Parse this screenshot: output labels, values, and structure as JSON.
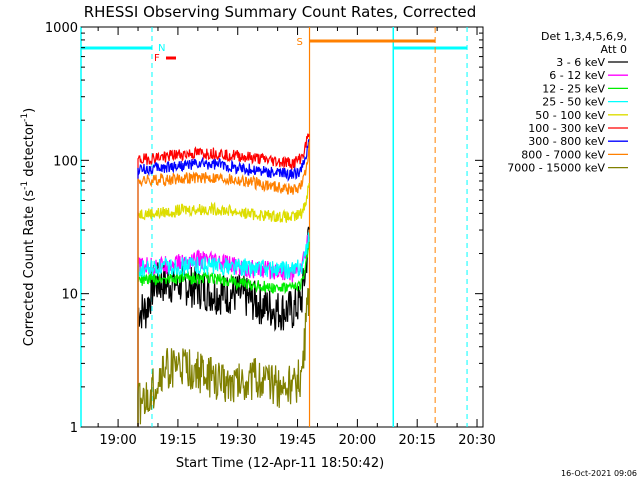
{
  "chart_data": {
    "type": "line",
    "title": "RHESSI Observing Summary Count Rates, Corrected",
    "xlabel": "Start Time (12-Apr-11 18:50:42)",
    "ylabel": "Corrected Count Rate (s⁻¹ detector⁻¹)",
    "ylabel_main": "Corrected Count Rate (s",
    "ylabel_mid": " detector",
    "ylabel_end": ")",
    "ylabel_exp": "-1",
    "y_scale": "log",
    "ylim": [
      1,
      1000
    ],
    "xlim": [
      "18:50:42",
      "20:31:30"
    ],
    "y_ticks": [
      {
        "value": 1,
        "label": "1"
      },
      {
        "value": 10,
        "label": "10"
      },
      {
        "value": 100,
        "label": "100"
      },
      {
        "value": 1000,
        "label": "1000"
      }
    ],
    "x_ticks": [
      {
        "time": "19:00",
        "label": "19:00"
      },
      {
        "time": "19:15",
        "label": "19:15"
      },
      {
        "time": "19:30",
        "label": "19:30"
      },
      {
        "time": "19:45",
        "label": "19:45"
      },
      {
        "time": "20:00",
        "label": "20:00"
      },
      {
        "time": "20:15",
        "label": "20:15"
      },
      {
        "time": "20:30",
        "label": "20:30"
      }
    ],
    "legend": {
      "position": "right",
      "header1": "Det 1,3,4,5,6,9,",
      "header2": "Att 0"
    },
    "data_start": "19:05:00",
    "data_end": "19:48:00",
    "series": [
      {
        "name": "3 - 6 keV",
        "color": "#000000",
        "x": [
          "19:05",
          "19:07",
          "19:09",
          "19:12",
          "19:15",
          "19:20",
          "19:25",
          "19:30",
          "19:35",
          "19:40",
          "19:44",
          "19:46",
          "19:47",
          "19:48"
        ],
        "y": [
          7.5,
          7.5,
          12,
          12,
          12,
          11,
          10,
          10,
          8.5,
          7.5,
          7.5,
          9,
          15,
          32
        ]
      },
      {
        "name": "6 - 12 keV",
        "color": "#ff00ff",
        "x": [
          "19:05",
          "19:10",
          "19:15",
          "19:20",
          "19:25",
          "19:30",
          "19:35",
          "19:40",
          "19:44",
          "19:46",
          "19:47",
          "19:48"
        ],
        "y": [
          16,
          16,
          17,
          18,
          17,
          16,
          15,
          15,
          14,
          16,
          20,
          32
        ]
      },
      {
        "name": "12 - 25 keV",
        "color": "#00ee00",
        "x": [
          "19:05",
          "19:10",
          "19:15",
          "19:20",
          "19:25",
          "19:30",
          "19:35",
          "19:40",
          "19:44",
          "19:46",
          "19:47",
          "19:48"
        ],
        "y": [
          12.5,
          13,
          13,
          13,
          13,
          12,
          11.5,
          11,
          11,
          12,
          15,
          28
        ]
      },
      {
        "name": "25 - 50 keV",
        "color": "#00ffff",
        "x": [
          "19:05",
          "19:10",
          "19:15",
          "19:20",
          "19:25",
          "19:30",
          "19:35",
          "19:40",
          "19:44",
          "19:46",
          "19:47",
          "19:48"
        ],
        "y": [
          15,
          15.5,
          16,
          16.5,
          16,
          16,
          15.5,
          15,
          15,
          16,
          19,
          30
        ]
      },
      {
        "name": "50 - 100 keV",
        "color": "#dddd00",
        "x": [
          "19:05",
          "19:10",
          "19:15",
          "19:20",
          "19:25",
          "19:30",
          "19:35",
          "19:40",
          "19:44",
          "19:46",
          "19:47",
          "19:48"
        ],
        "y": [
          40,
          40,
          42,
          43,
          43,
          41,
          39,
          38,
          37,
          40,
          48,
          70
        ]
      },
      {
        "name": "100 - 300 keV",
        "color": "#ff0000",
        "x": [
          "19:05",
          "19:10",
          "19:15",
          "19:20",
          "19:25",
          "19:30",
          "19:35",
          "19:40",
          "19:44",
          "19:46",
          "19:47",
          "19:48"
        ],
        "y": [
          100,
          105,
          110,
          113,
          113,
          108,
          103,
          98,
          95,
          105,
          125,
          180
        ]
      },
      {
        "name": "300 - 800 keV",
        "color": "#0000ff",
        "x": [
          "19:05",
          "19:10",
          "19:15",
          "19:20",
          "19:25",
          "19:30",
          "19:35",
          "19:40",
          "19:44",
          "19:46",
          "19:47",
          "19:48"
        ],
        "y": [
          85,
          87,
          91,
          93,
          93,
          88,
          84,
          80,
          78,
          85,
          100,
          150
        ]
      },
      {
        "name": "800 - 7000 keV",
        "color": "#ff8000",
        "x": [
          "19:05",
          "19:10",
          "19:15",
          "19:20",
          "19:25",
          "19:30",
          "19:35",
          "19:40",
          "19:44",
          "19:46",
          "19:47",
          "19:48"
        ],
        "y": [
          70,
          71,
          73,
          74,
          74,
          71,
          67,
          63,
          60,
          65,
          80,
          130
        ]
      },
      {
        "name": "7000 - 15000 keV",
        "color": "#808000",
        "x": [
          "19:05",
          "19:07",
          "19:09",
          "19:12",
          "19:15",
          "19:20",
          "19:25",
          "19:30",
          "19:35",
          "19:40",
          "19:44",
          "19:46",
          "19:47",
          "19:48"
        ],
        "y": [
          1.5,
          1.5,
          2,
          2.8,
          2.8,
          2.6,
          2.2,
          2.2,
          2.3,
          2,
          2,
          2.5,
          5,
          12
        ]
      }
    ],
    "annotations": [
      {
        "label": "N",
        "color": "#00ffff"
      },
      {
        "label": "F",
        "color": "#ff0000"
      },
      {
        "label": "S",
        "color": "#ff8000"
      }
    ],
    "footer_date": "16-Oct-2021 09:06"
  }
}
